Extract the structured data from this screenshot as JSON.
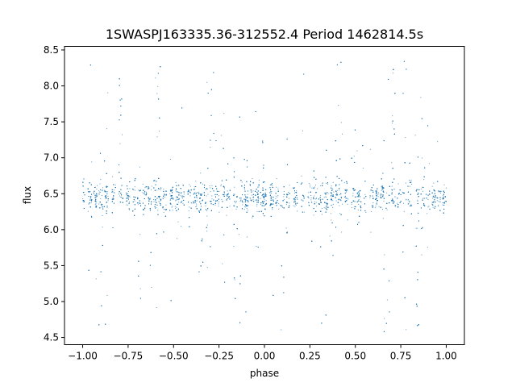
{
  "chart_data": {
    "type": "scatter",
    "title": "1SWASPJ163335.36-312552.4 Period 1462814.5s",
    "xlabel": "phase",
    "ylabel": "flux",
    "xlim": [
      -1.1,
      1.1
    ],
    "ylim": [
      4.4,
      8.55
    ],
    "xticks": [
      -1.0,
      -0.75,
      -0.5,
      -0.25,
      0.0,
      0.25,
      0.5,
      0.75,
      1.0
    ],
    "xtick_labels": [
      "−1.00",
      "−0.75",
      "−0.50",
      "−0.25",
      "0.00",
      "0.25",
      "0.50",
      "0.75",
      "1.00"
    ],
    "yticks": [
      4.5,
      5.0,
      5.5,
      6.0,
      6.5,
      7.0,
      7.5,
      8.0,
      8.5
    ],
    "ytick_labels": [
      "4.5",
      "5.0",
      "5.5",
      "6.0",
      "6.5",
      "7.0",
      "7.5",
      "8.0",
      "8.5"
    ],
    "grid": false,
    "marker_color": "#1f77b4",
    "phase_range": [
      -1.0,
      1.0
    ],
    "phase_period": 1.0,
    "flux_baseline": 6.45,
    "flux_scatter": 0.18,
    "flux_min": 4.58,
    "flux_max": 8.35,
    "observation_phases": [
      0.0,
      0.04,
      0.07,
      0.1,
      0.13,
      0.17,
      0.21,
      0.25,
      0.28,
      0.31,
      0.34,
      0.37,
      0.4,
      0.42,
      0.45,
      0.49,
      0.52,
      0.55,
      0.59,
      0.62,
      0.65,
      0.68,
      0.71,
      0.74,
      0.77,
      0.8,
      0.84,
      0.87,
      0.9,
      0.93,
      0.96,
      0.99
    ],
    "flare_phases": [
      0.2,
      0.42,
      0.7,
      0.77,
      0.85
    ],
    "dip_phases": [
      0.1,
      0.32,
      0.37,
      0.67,
      0.77,
      0.85
    ]
  }
}
